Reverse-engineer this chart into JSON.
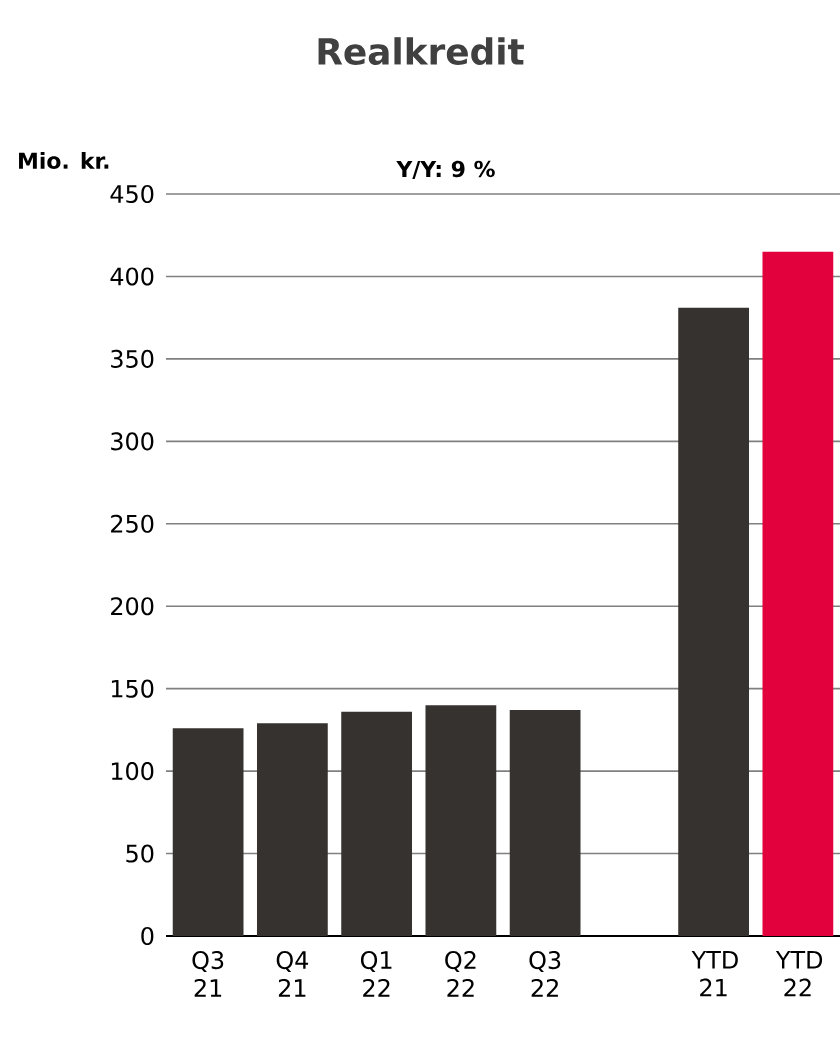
{
  "chart_data": {
    "type": "bar",
    "title": "Realkredit",
    "ylabel": "Mio. kr.",
    "annotations": [
      "Y/Y: 9 %"
    ],
    "categories": [
      "Q3 21",
      "Q4 21",
      "Q1 22",
      "Q2 22",
      "Q3 22",
      null,
      "YTD 21",
      "YTD 22"
    ],
    "values": [
      126,
      129,
      136,
      140,
      137,
      null,
      381,
      415
    ],
    "colors": [
      "#363230",
      "#363230",
      "#363230",
      "#363230",
      "#363230",
      "#363230",
      "#363230",
      "#e2003d"
    ],
    "ylim": [
      0,
      450
    ],
    "yticks": [
      0,
      50,
      100,
      150,
      200,
      250,
      300,
      350,
      400,
      450
    ],
    "grid": "y"
  }
}
